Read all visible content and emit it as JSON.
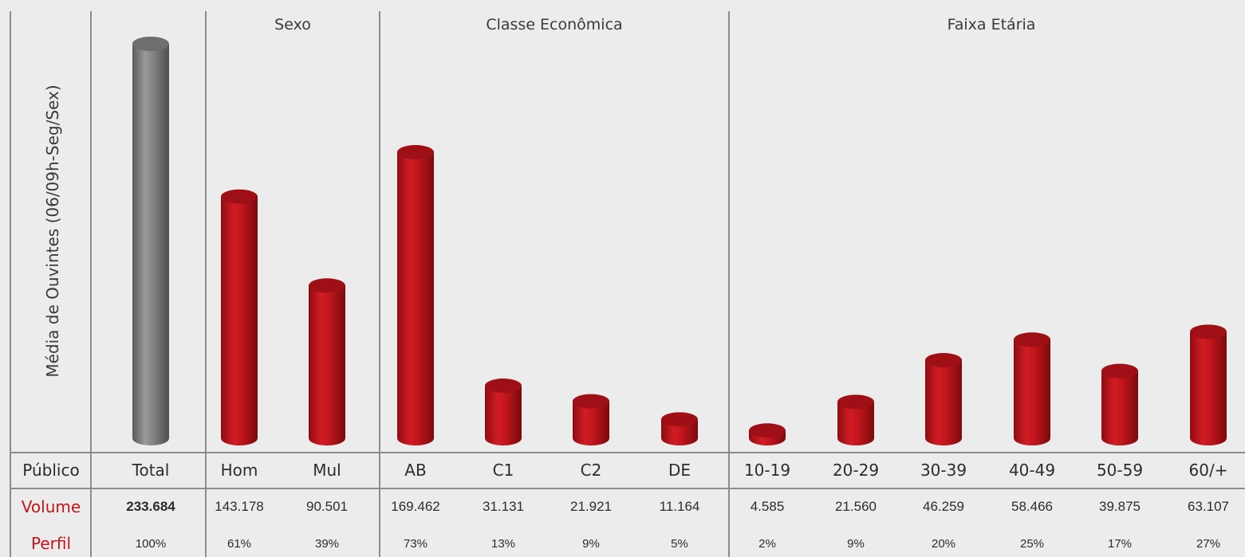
{
  "chart_data": {
    "type": "bar",
    "ylabel": "Média de Ouvintes (06/09h-Seg/Sex)",
    "row_labels": {
      "publico": "Público",
      "volume": "Volume",
      "perfil": "Perfil"
    },
    "groups": [
      {
        "title": "",
        "categories": [
          "Total"
        ]
      },
      {
        "title": "Sexo",
        "categories": [
          "Hom",
          "Mul"
        ]
      },
      {
        "title": "Classe Econômica",
        "categories": [
          "AB",
          "C1",
          "C2",
          "DE"
        ]
      },
      {
        "title": "Faixa Etária",
        "categories": [
          "10-19",
          "20-29",
          "30-39",
          "40-49",
          "50-59",
          "60/+"
        ]
      }
    ],
    "categories": [
      "Total",
      "Hom",
      "Mul",
      "AB",
      "C1",
      "C2",
      "DE",
      "10-19",
      "20-29",
      "30-39",
      "40-49",
      "50-59",
      "60/+"
    ],
    "values": [
      233684,
      143178,
      90501,
      169462,
      31131,
      21921,
      11164,
      4585,
      21560,
      46259,
      58466,
      39875,
      63107
    ],
    "volume_labels": [
      "233.684",
      "143.178",
      "90.501",
      "169.462",
      "31.131",
      "21.921",
      "11.164",
      "4.585",
      "21.560",
      "46.259",
      "58.466",
      "39.875",
      "63.107"
    ],
    "perfil_labels": [
      "100%",
      "61%",
      "39%",
      "73%",
      "13%",
      "9%",
      "5%",
      "2%",
      "9%",
      "20%",
      "25%",
      "17%",
      "27%"
    ],
    "colors": {
      "total": "#808080",
      "segment": "#b8141b"
    }
  }
}
